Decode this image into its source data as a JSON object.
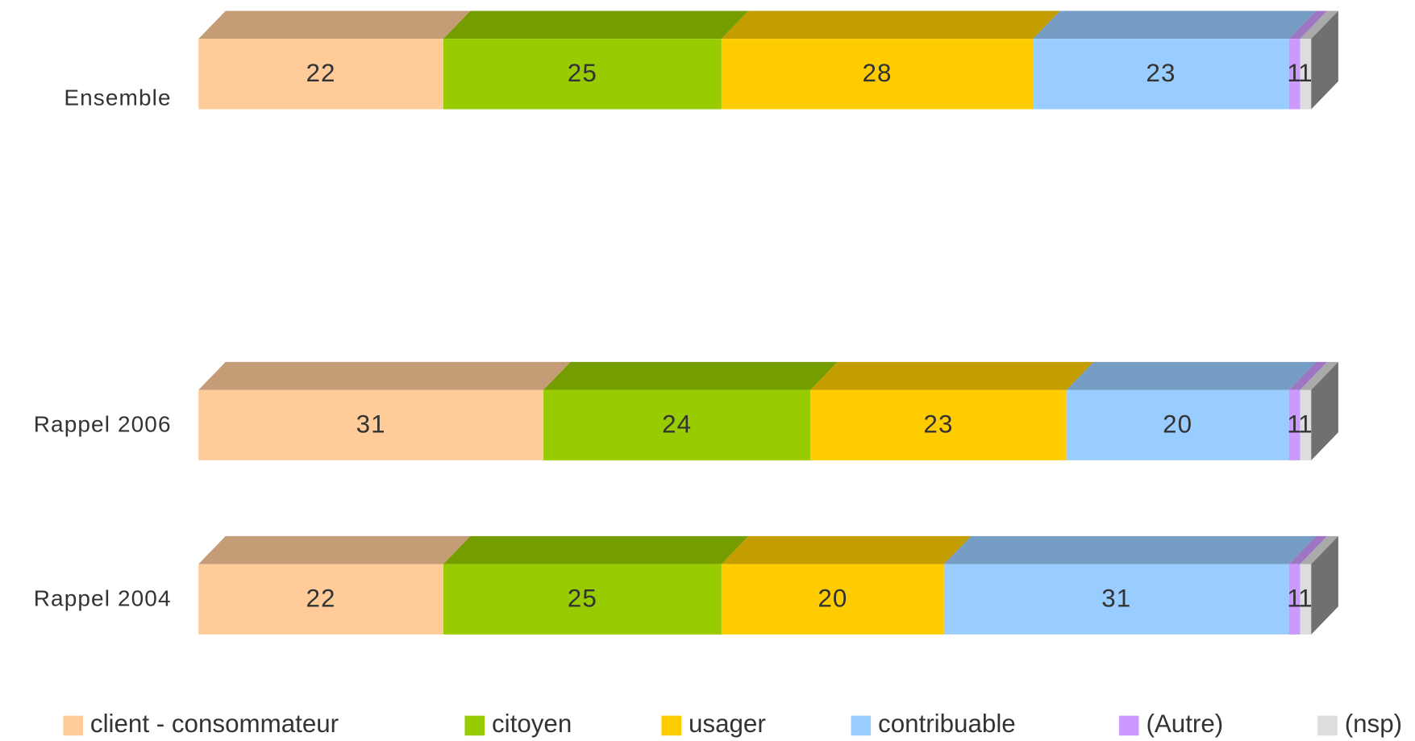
{
  "chart_data": {
    "type": "stacked-bar-3d",
    "categories": [
      "Ensemble",
      "Rappel 2006",
      "Rappel 2004"
    ],
    "series": [
      {
        "name": "client - consommateur",
        "color": "#ffcc99",
        "values": [
          22,
          31,
          22
        ]
      },
      {
        "name": "citoyen",
        "color": "#99cc00",
        "values": [
          25,
          24,
          25
        ]
      },
      {
        "name": "usager",
        "color": "#ffcc00",
        "values": [
          28,
          23,
          20
        ]
      },
      {
        "name": "contribuable",
        "color": "#99ccff",
        "values": [
          23,
          20,
          31
        ]
      },
      {
        "name": "(Autre)",
        "color": "#cc99ff",
        "values": [
          1,
          1,
          1
        ]
      },
      {
        "name": "(nsp)",
        "color": "#dddddd",
        "values": [
          1,
          1,
          1
        ]
      }
    ],
    "legend": "bottom"
  }
}
